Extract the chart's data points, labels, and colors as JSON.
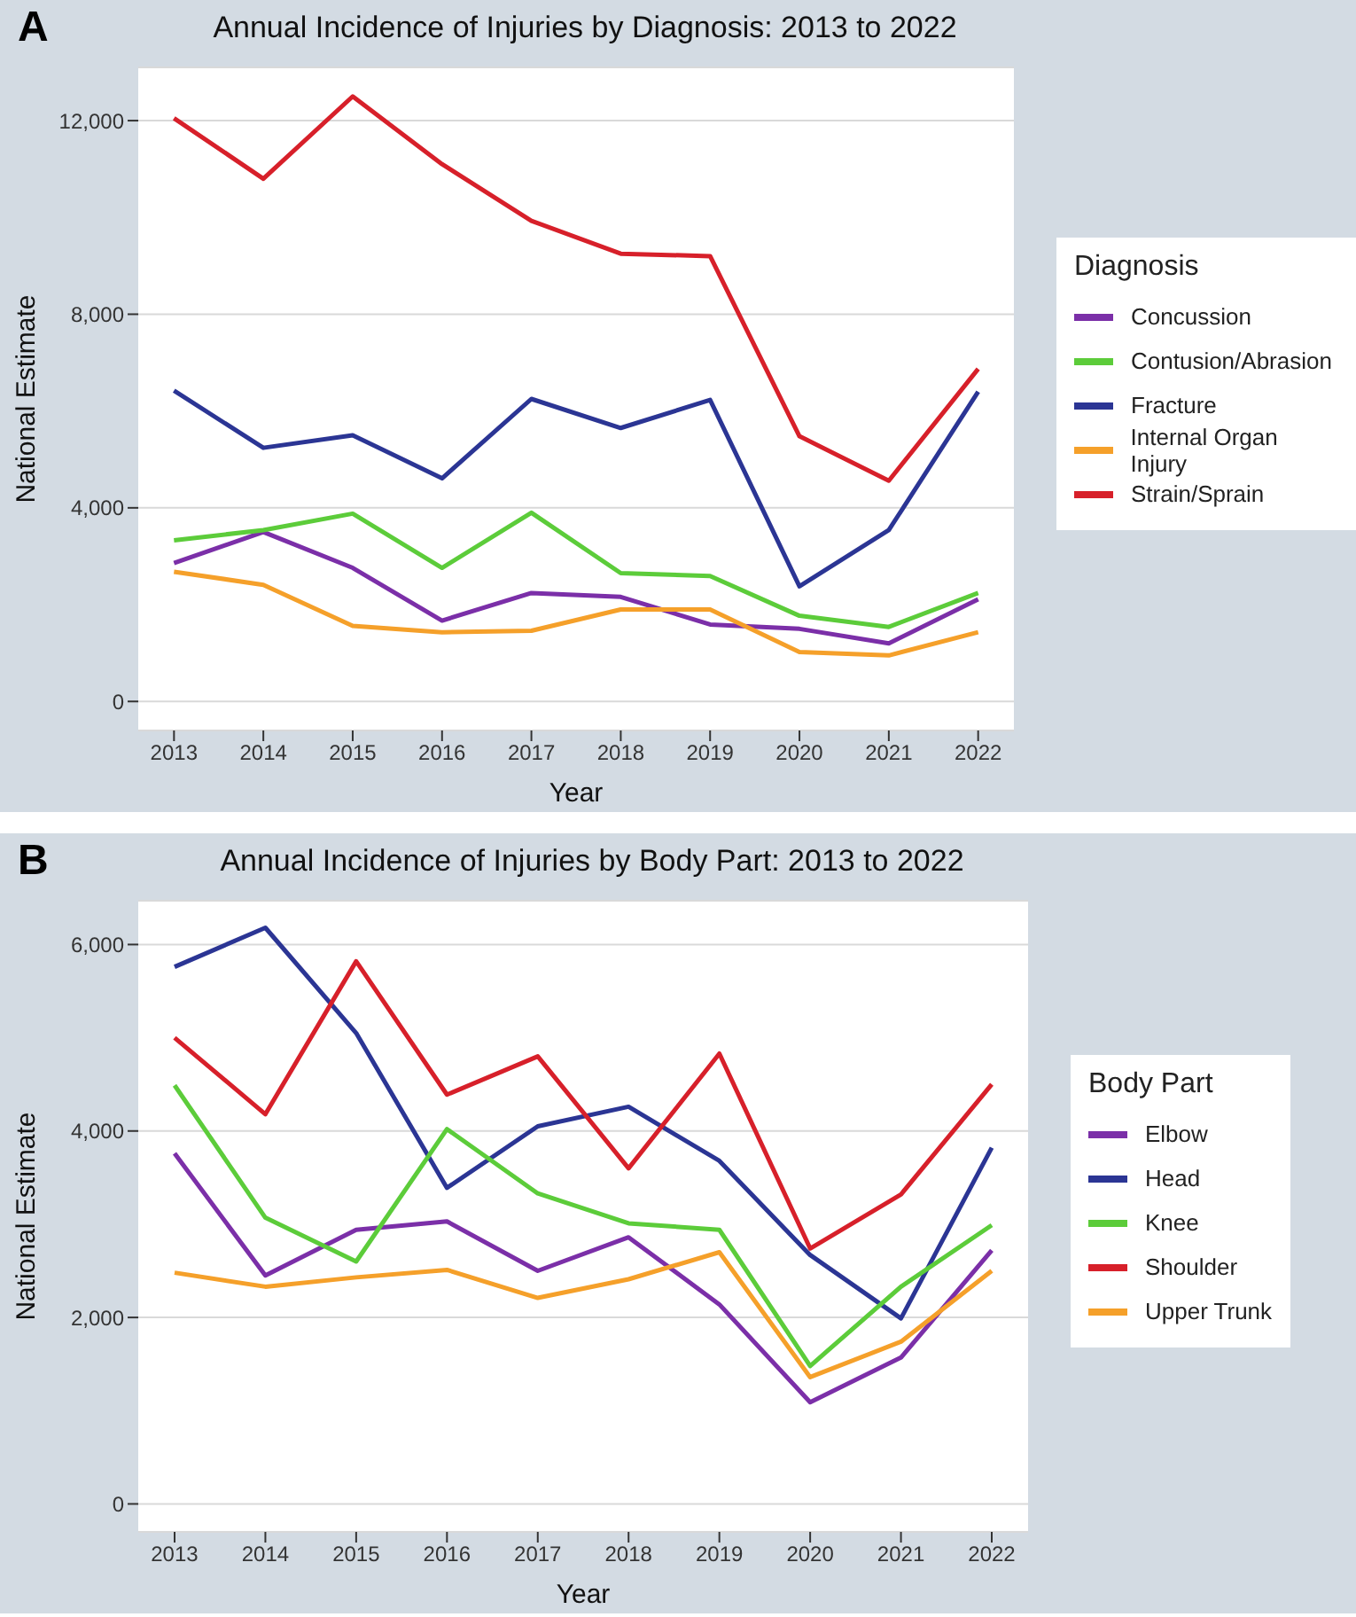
{
  "chart_data": [
    {
      "type": "line",
      "title": "Annual Incidence of Injuries by Diagnosis: 2013 to 2022",
      "annotations": [
        "A"
      ],
      "xlabel": "Year",
      "ylabel": "National Estimate",
      "legend_title": "Diagnosis",
      "legend": "right",
      "grid": "y",
      "marker": "none",
      "line_style": "solid",
      "x": [
        2013,
        2014,
        2015,
        2016,
        2017,
        2018,
        2019,
        2020,
        2021,
        2022
      ],
      "xlim": [
        2012.6,
        2022.4
      ],
      "xticks": [
        2013,
        2014,
        2015,
        2016,
        2017,
        2018,
        2019,
        2020,
        2021,
        2022
      ],
      "ylim": [
        -600,
        13100
      ],
      "yticks": [
        {
          "value": 0,
          "label": "0"
        },
        {
          "value": 4000,
          "label": "4,000"
        },
        {
          "value": 8000,
          "label": "8,000"
        },
        {
          "value": 12000,
          "label": "12,000"
        }
      ],
      "series": [
        {
          "name": "Concussion",
          "color": "#7b2fa8",
          "values": [
            2860,
            3500,
            2760,
            1670,
            2240,
            2160,
            1590,
            1500,
            1200,
            2110
          ]
        },
        {
          "name": "Contusion/Abrasion",
          "color": "#5ccc3a",
          "values": [
            3330,
            3540,
            3880,
            2760,
            3900,
            2650,
            2590,
            1770,
            1540,
            2240
          ]
        },
        {
          "name": "Fracture",
          "color": "#2b3594",
          "values": [
            6420,
            5240,
            5500,
            4610,
            6250,
            5650,
            6230,
            2380,
            3540,
            6400
          ]
        },
        {
          "name": "Internal Organ Injury",
          "color": "#f5a02a",
          "values": [
            2680,
            2410,
            1560,
            1430,
            1460,
            1900,
            1900,
            1020,
            950,
            1430
          ]
        },
        {
          "name": "Strain/Sprain",
          "color": "#d7202a",
          "values": [
            12050,
            10800,
            12500,
            11100,
            9930,
            9250,
            9200,
            5480,
            4560,
            6870
          ]
        }
      ]
    },
    {
      "type": "line",
      "title": "Annual Incidence of Injuries by Body Part: 2013 to 2022",
      "annotations": [
        "B"
      ],
      "xlabel": "Year",
      "ylabel": "National Estimate",
      "legend_title": "Body Part",
      "legend": "right",
      "grid": "y",
      "marker": "none",
      "line_style": "solid",
      "x": [
        2013,
        2014,
        2015,
        2016,
        2017,
        2018,
        2019,
        2020,
        2021,
        2022
      ],
      "xlim": [
        2012.6,
        2022.4
      ],
      "xticks": [
        2013,
        2014,
        2015,
        2016,
        2017,
        2018,
        2019,
        2020,
        2021,
        2022
      ],
      "ylim": [
        -300,
        6470
      ],
      "yticks": [
        {
          "value": 0,
          "label": "0"
        },
        {
          "value": 2000,
          "label": "2,000"
        },
        {
          "value": 4000,
          "label": "4,000"
        },
        {
          "value": 6000,
          "label": "6,000"
        }
      ],
      "series": [
        {
          "name": "Elbow",
          "color": "#7b2fa8",
          "values": [
            3760,
            2450,
            2940,
            3030,
            2500,
            2860,
            2140,
            1090,
            1570,
            2720
          ]
        },
        {
          "name": "Head",
          "color": "#2b3594",
          "values": [
            5760,
            6180,
            5050,
            3390,
            4050,
            4260,
            3680,
            2670,
            1990,
            3820
          ]
        },
        {
          "name": "Knee",
          "color": "#5ccc3a",
          "values": [
            4490,
            3070,
            2600,
            4020,
            3330,
            3010,
            2940,
            1480,
            2330,
            2990
          ]
        },
        {
          "name": "Shoulder",
          "color": "#d7202a",
          "values": [
            5000,
            4180,
            5820,
            4390,
            4800,
            3600,
            4830,
            2740,
            3320,
            4500
          ]
        },
        {
          "name": "Upper Trunk",
          "color": "#f5a02a",
          "values": [
            2480,
            2330,
            2430,
            2510,
            2210,
            2410,
            2700,
            1360,
            1740,
            2500
          ]
        }
      ]
    }
  ]
}
